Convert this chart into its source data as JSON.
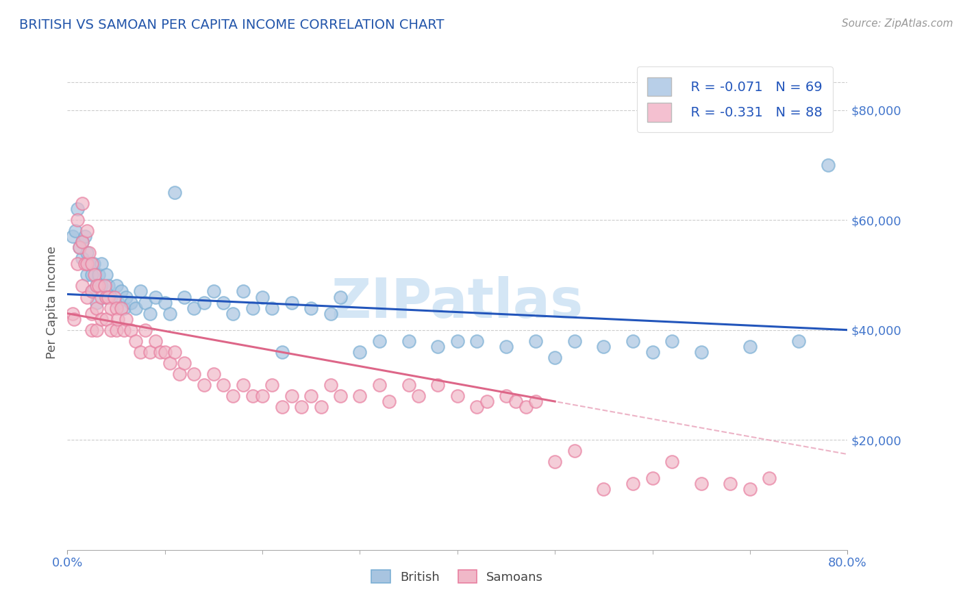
{
  "title": "BRITISH VS SAMOAN PER CAPITA INCOME CORRELATION CHART",
  "source": "Source: ZipAtlas.com",
  "ylabel": "Per Capita Income",
  "xlim": [
    0.0,
    0.8
  ],
  "ylim": [
    0,
    90000
  ],
  "yticks": [
    20000,
    40000,
    60000,
    80000
  ],
  "ytick_labels": [
    "$20,000",
    "$40,000",
    "$60,000",
    "$80,000"
  ],
  "xtick_labels": [
    "0.0%",
    "80.0%"
  ],
  "british_R": -0.071,
  "british_N": 69,
  "samoan_R": -0.331,
  "samoan_N": 88,
  "blue_dot_color": "#a8c4e0",
  "blue_dot_edge": "#7bafd4",
  "pink_dot_color": "#f0b8c8",
  "pink_dot_edge": "#e87fa0",
  "blue_line_color": "#2255bb",
  "pink_line_color": "#dd6688",
  "dash_line_color": "#e8a0b8",
  "axis_color": "#4477cc",
  "grid_color": "#cccccc",
  "title_color": "#2255aa",
  "watermark": "ZIPatlas",
  "watermark_color": "#d0e4f4",
  "legend_label_color": "#2255bb",
  "blue_legend_fill": "#b8cfe8",
  "pink_legend_fill": "#f4c0d0",
  "british_x": [
    0.005,
    0.008,
    0.01,
    0.012,
    0.015,
    0.015,
    0.018,
    0.02,
    0.02,
    0.022,
    0.025,
    0.025,
    0.027,
    0.03,
    0.03,
    0.032,
    0.035,
    0.035,
    0.04,
    0.04,
    0.042,
    0.045,
    0.05,
    0.052,
    0.055,
    0.058,
    0.06,
    0.065,
    0.07,
    0.075,
    0.08,
    0.085,
    0.09,
    0.1,
    0.105,
    0.11,
    0.12,
    0.13,
    0.14,
    0.15,
    0.16,
    0.17,
    0.18,
    0.19,
    0.2,
    0.21,
    0.22,
    0.23,
    0.25,
    0.27,
    0.28,
    0.3,
    0.32,
    0.35,
    0.38,
    0.4,
    0.42,
    0.45,
    0.48,
    0.5,
    0.52,
    0.55,
    0.58,
    0.6,
    0.62,
    0.65,
    0.7,
    0.75,
    0.78
  ],
  "british_y": [
    57000,
    58000,
    62000,
    55000,
    56000,
    53000,
    57000,
    54000,
    50000,
    52000,
    50000,
    47000,
    52000,
    48000,
    45000,
    50000,
    52000,
    48000,
    50000,
    46000,
    48000,
    46000,
    48000,
    45000,
    47000,
    44000,
    46000,
    45000,
    44000,
    47000,
    45000,
    43000,
    46000,
    45000,
    43000,
    65000,
    46000,
    44000,
    45000,
    47000,
    45000,
    43000,
    47000,
    44000,
    46000,
    44000,
    36000,
    45000,
    44000,
    43000,
    46000,
    36000,
    38000,
    38000,
    37000,
    38000,
    38000,
    37000,
    38000,
    35000,
    38000,
    37000,
    38000,
    36000,
    38000,
    36000,
    37000,
    38000,
    70000
  ],
  "samoan_x": [
    0.005,
    0.007,
    0.01,
    0.01,
    0.012,
    0.015,
    0.015,
    0.015,
    0.018,
    0.02,
    0.02,
    0.02,
    0.022,
    0.025,
    0.025,
    0.025,
    0.025,
    0.028,
    0.03,
    0.03,
    0.03,
    0.032,
    0.035,
    0.035,
    0.038,
    0.04,
    0.04,
    0.042,
    0.045,
    0.045,
    0.048,
    0.05,
    0.05,
    0.052,
    0.055,
    0.058,
    0.06,
    0.065,
    0.07,
    0.075,
    0.08,
    0.085,
    0.09,
    0.095,
    0.1,
    0.105,
    0.11,
    0.115,
    0.12,
    0.13,
    0.14,
    0.15,
    0.16,
    0.17,
    0.18,
    0.19,
    0.2,
    0.21,
    0.22,
    0.23,
    0.24,
    0.25,
    0.26,
    0.27,
    0.28,
    0.3,
    0.32,
    0.33,
    0.35,
    0.36,
    0.38,
    0.4,
    0.42,
    0.43,
    0.45,
    0.46,
    0.47,
    0.48,
    0.5,
    0.52,
    0.55,
    0.58,
    0.6,
    0.62,
    0.65,
    0.68,
    0.7,
    0.72
  ],
  "samoan_y": [
    43000,
    42000,
    60000,
    52000,
    55000,
    63000,
    56000,
    48000,
    52000,
    58000,
    52000,
    46000,
    54000,
    52000,
    47000,
    43000,
    40000,
    50000,
    48000,
    44000,
    40000,
    48000,
    46000,
    42000,
    48000,
    46000,
    42000,
    46000,
    44000,
    40000,
    46000,
    44000,
    40000,
    42000,
    44000,
    40000,
    42000,
    40000,
    38000,
    36000,
    40000,
    36000,
    38000,
    36000,
    36000,
    34000,
    36000,
    32000,
    34000,
    32000,
    30000,
    32000,
    30000,
    28000,
    30000,
    28000,
    28000,
    30000,
    26000,
    28000,
    26000,
    28000,
    26000,
    30000,
    28000,
    28000,
    30000,
    27000,
    30000,
    28000,
    30000,
    28000,
    26000,
    27000,
    28000,
    27000,
    26000,
    27000,
    16000,
    18000,
    11000,
    12000,
    13000,
    16000,
    12000,
    12000,
    11000,
    13000
  ]
}
